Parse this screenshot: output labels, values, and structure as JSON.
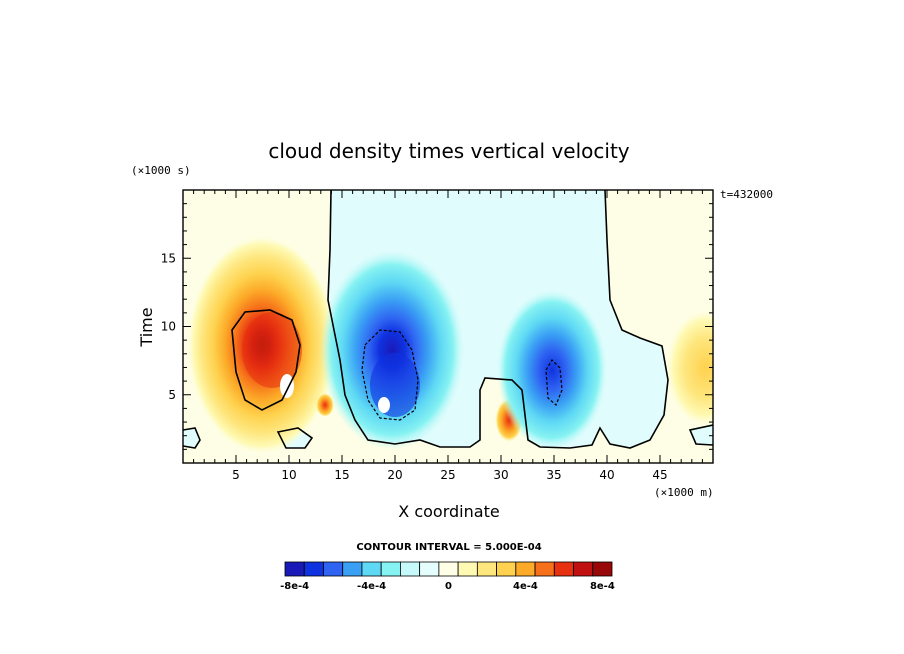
{
  "chart_data": {
    "type": "heatmap",
    "title": "cloud density times vertical velocity",
    "xlabel": "X coordinate",
    "ylabel": "Time",
    "x_unit": "(×1000 m)",
    "y_unit": "(×1000 s)",
    "time_stamp": "t=432000",
    "xlim": [
      0,
      50
    ],
    "ylim": [
      0,
      20
    ],
    "x_ticks": [
      5,
      10,
      15,
      20,
      25,
      30,
      35,
      40,
      45
    ],
    "y_ticks": [
      5,
      10,
      15
    ],
    "x_tick_labels": [
      "5",
      "10",
      "15",
      "20",
      "25",
      "30",
      "35",
      "40",
      "45"
    ],
    "y_tick_labels": [
      "5",
      "10",
      "15"
    ],
    "contour_interval_text": "CONTOUR INTERVAL = 5.000E-04",
    "grid": false,
    "colorbar": {
      "placement": "bottom",
      "colors": [
        "#1a1ab8",
        "#0f32e0",
        "#2f64f2",
        "#3aa0f4",
        "#5ed8f4",
        "#86f2f2",
        "#c6fafa",
        "#e6fdfd",
        "#fefee6",
        "#fefab4",
        "#fee67e",
        "#fed24e",
        "#fcaa28",
        "#f6701a",
        "#e63010",
        "#c01010",
        "#980808"
      ],
      "labels": [
        "-8e-4",
        "-4e-4",
        "0",
        "4e-4",
        "8e-4"
      ],
      "label_positions": [
        -0.0008,
        -0.0004,
        0,
        0.0004,
        0.0008
      ],
      "vmin": -0.00085,
      "vmax": 0.00085
    },
    "background_colors": {
      "positive_region": "#fefee6",
      "negative_region": "#e0fcfc"
    },
    "cells": [
      {
        "name": "positive-cell-1",
        "x": 8.5,
        "y": 9.0,
        "peak": 0.00085
      },
      {
        "name": "negative-cell-1",
        "x": 19.5,
        "y": 6.0,
        "peak": -0.00085
      },
      {
        "name": "positive-cell-2",
        "x": 30.5,
        "y": 3.5,
        "peak": 0.0007
      },
      {
        "name": "negative-cell-2",
        "x": 35.5,
        "y": 6.0,
        "peak": -0.0007
      },
      {
        "name": "positive-cell-3",
        "x": 48.5,
        "y": 7.0,
        "peak": 0.0003
      }
    ]
  }
}
